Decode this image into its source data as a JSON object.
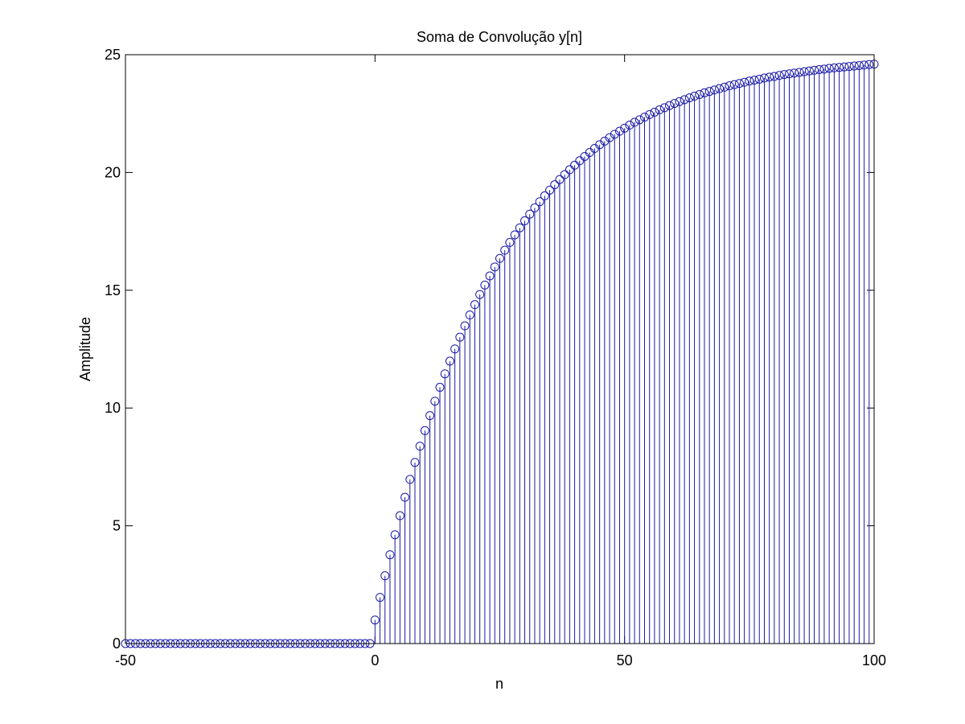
{
  "chart_data": {
    "type": "stem",
    "title": "Soma de Convolução y[n]",
    "xlabel": "n",
    "ylabel": "Amplitude",
    "color": "#1a1aa8",
    "x": [
      -50,
      -49,
      -48,
      -47,
      -46,
      -45,
      -44,
      -43,
      -42,
      -41,
      -40,
      -39,
      -38,
      -37,
      -36,
      -35,
      -34,
      -33,
      -32,
      -31,
      -30,
      -29,
      -28,
      -27,
      -26,
      -25,
      -24,
      -23,
      -22,
      -21,
      -20,
      -19,
      -18,
      -17,
      -16,
      -15,
      -14,
      -13,
      -12,
      -11,
      -10,
      -9,
      -8,
      -7,
      -6,
      -5,
      -4,
      -3,
      -2,
      -1,
      0,
      1,
      2,
      3,
      4,
      5,
      6,
      7,
      8,
      9,
      10,
      11,
      12,
      13,
      14,
      15,
      16,
      17,
      18,
      19,
      20,
      21,
      22,
      23,
      24,
      25,
      26,
      27,
      28,
      29,
      30,
      31,
      32,
      33,
      34,
      35,
      36,
      37,
      38,
      39,
      40,
      41,
      42,
      43,
      44,
      45,
      46,
      47,
      48,
      49,
      50,
      51,
      52,
      53,
      54,
      55,
      56,
      57,
      58,
      59,
      60,
      61,
      62,
      63,
      64,
      65,
      66,
      67,
      68,
      69,
      70,
      71,
      72,
      73,
      74,
      75,
      76,
      77,
      78,
      79,
      80,
      81,
      82,
      83,
      84,
      85,
      86,
      87,
      88,
      89,
      90,
      91,
      92,
      93,
      94,
      95,
      96,
      97,
      98,
      99,
      100
    ],
    "values": [
      0,
      0,
      0,
      0,
      0,
      0,
      0,
      0,
      0,
      0,
      0,
      0,
      0,
      0,
      0,
      0,
      0,
      0,
      0,
      0,
      0,
      0,
      0,
      0,
      0,
      0,
      0,
      0,
      0,
      0,
      0,
      0,
      0,
      0,
      0,
      0,
      0,
      0,
      0,
      0,
      0,
      0,
      0,
      0,
      0,
      0,
      0,
      0,
      0,
      0,
      1.0,
      1.96,
      2.88,
      3.77,
      4.62,
      5.43,
      6.21,
      6.97,
      7.69,
      8.38,
      9.04,
      9.68,
      10.29,
      10.88,
      11.45,
      11.99,
      12.51,
      13.01,
      13.49,
      13.95,
      14.39,
      14.82,
      15.22,
      15.61,
      15.99,
      16.35,
      16.7,
      17.03,
      17.35,
      17.65,
      17.95,
      18.23,
      18.5,
      18.76,
      19.01,
      19.25,
      19.48,
      19.7,
      19.91,
      20.12,
      20.31,
      20.5,
      20.68,
      20.85,
      21.02,
      21.18,
      21.33,
      21.48,
      21.62,
      21.75,
      21.88,
      22.01,
      22.13,
      22.24,
      22.35,
      22.46,
      22.56,
      22.66,
      22.75,
      22.84,
      22.93,
      23.01,
      23.09,
      23.17,
      23.24,
      23.31,
      23.38,
      23.44,
      23.5,
      23.56,
      23.62,
      23.68,
      23.73,
      23.78,
      23.83,
      23.88,
      23.92,
      23.96,
      24.01,
      24.05,
      24.08,
      24.12,
      24.16,
      24.19,
      24.22,
      24.25,
      24.28,
      24.31,
      24.34,
      24.37,
      24.39,
      24.42,
      24.44,
      24.46,
      24.48,
      24.5,
      24.52,
      24.54,
      24.56,
      24.58,
      24.6
    ],
    "xlim": [
      -50,
      100
    ],
    "xticks": [
      -50,
      0,
      50,
      100
    ],
    "ylim": [
      0,
      25
    ],
    "yticks": [
      0,
      5,
      10,
      15,
      20,
      25
    ],
    "grid": false
  }
}
